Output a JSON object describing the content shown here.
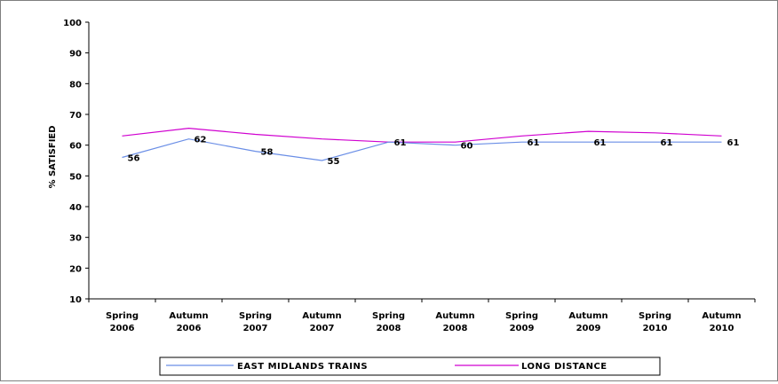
{
  "chart_data": {
    "type": "line",
    "title": "",
    "ylabel": "% SATISFIED",
    "xlabel": "",
    "ylim": [
      10,
      100
    ],
    "yticks": [
      10,
      20,
      30,
      40,
      50,
      60,
      70,
      80,
      90,
      100
    ],
    "categories": [
      [
        "Spring",
        "2006"
      ],
      [
        "Autumn",
        "2006"
      ],
      [
        "Spring",
        "2007"
      ],
      [
        "Autumn",
        "2007"
      ],
      [
        "Spring",
        "2008"
      ],
      [
        "Autumn",
        "2008"
      ],
      [
        "Spring",
        "2009"
      ],
      [
        "Autumn",
        "2009"
      ],
      [
        "Spring",
        "2010"
      ],
      [
        "Autumn",
        "2010"
      ]
    ],
    "series": [
      {
        "name": "EAST MIDLANDS TRAINS",
        "color": "#6a8ee6",
        "values": [
          56,
          62,
          58,
          55,
          61,
          60,
          61,
          61,
          61,
          61
        ],
        "data_labels": true
      },
      {
        "name": "LONG DISTANCE",
        "color": "#d000d0",
        "values": [
          63,
          65.5,
          63.5,
          62,
          61,
          61,
          63,
          64.5,
          64,
          63
        ],
        "data_labels": false
      }
    ],
    "legend_position": "bottom",
    "grid": false
  }
}
